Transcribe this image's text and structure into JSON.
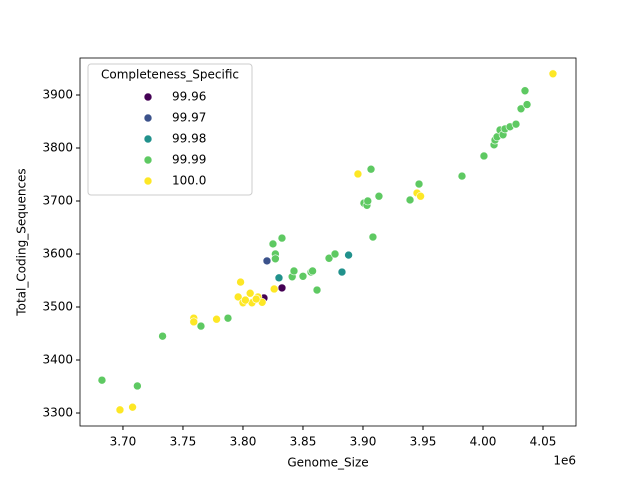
{
  "chart_data": {
    "type": "scatter",
    "xlabel": "Genome_Size",
    "ylabel": "Total_Coding_Sequences",
    "x_offset_label": "1e6",
    "legend_title": "Completeness_Specific",
    "legend": "upper left",
    "xlim": [
      3664200,
      4077500
    ],
    "ylim": [
      3275.5,
      3969.8
    ],
    "xticks": [
      {
        "value": 3700000,
        "label": "3.70"
      },
      {
        "value": 3750000,
        "label": "3.75"
      },
      {
        "value": 3800000,
        "label": "3.80"
      },
      {
        "value": 3850000,
        "label": "3.85"
      },
      {
        "value": 3900000,
        "label": "3.90"
      },
      {
        "value": 3950000,
        "label": "3.95"
      },
      {
        "value": 4000000,
        "label": "4.00"
      },
      {
        "value": 4050000,
        "label": "4.05"
      }
    ],
    "yticks": [
      3300,
      3400,
      3500,
      3600,
      3700,
      3800,
      3900
    ],
    "series": [
      {
        "name": "99.96",
        "color": "#440154",
        "x": [
          3832500,
          3817500
        ],
        "values": [
          3536,
          3517
        ]
      },
      {
        "name": "99.97",
        "color": "#3b528b",
        "x": [
          3820000
        ],
        "values": [
          3587
        ]
      },
      {
        "name": "99.98",
        "color": "#21918c",
        "x": [
          3830000,
          3882500,
          3888000
        ],
        "values": [
          3555,
          3566,
          3598
        ]
      },
      {
        "name": "99.99",
        "color": "#5ec962",
        "x": [
          3682500,
          3712000,
          3733000,
          3765000,
          3787500,
          3825000,
          3827000,
          3827000,
          3832500,
          3841000,
          3842500,
          3850000,
          3856700,
          3858000,
          3861700,
          3871700,
          3876700,
          3900800,
          3903300,
          3904000,
          3906700,
          3908300,
          3913300,
          3939200,
          3946700,
          3982500,
          4000800,
          4009200,
          4010000,
          4011700,
          4014200,
          4016700,
          4018300,
          4022500,
          4027500,
          4031700,
          4035000,
          4036700
        ],
        "values": [
          3362,
          3351,
          3445,
          3464,
          3479,
          3619,
          3600,
          3591,
          3630,
          3557,
          3568,
          3558,
          3566,
          3568,
          3532,
          3592,
          3600,
          3696,
          3692,
          3700,
          3760,
          3632,
          3709,
          3702,
          3732,
          3747,
          3785,
          3806,
          3815,
          3821,
          3834,
          3825,
          3836,
          3840,
          3845,
          3874,
          3908,
          3882
        ]
      },
      {
        "name": "100.0",
        "color": "#fde725",
        "x": [
          4058300,
          3697500,
          3708000,
          3759000,
          3759000,
          3778000,
          3798000,
          3796000,
          3800000,
          3806000,
          3807500,
          3812500,
          3816000,
          3811000,
          3826000,
          3895800,
          3945000,
          3948000,
          3802000
        ],
        "values": [
          3940,
          3306,
          3311,
          3479,
          3472,
          3477,
          3547,
          3519,
          3508,
          3526,
          3508,
          3519,
          3509,
          3515,
          3534,
          3751,
          3715,
          3709,
          3513
        ]
      }
    ]
  }
}
